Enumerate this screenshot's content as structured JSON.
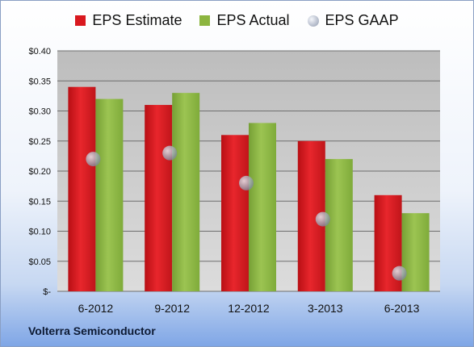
{
  "chart_data": {
    "type": "bar",
    "categories": [
      "6-2012",
      "9-2012",
      "12-2012",
      "3-2013",
      "6-2013"
    ],
    "series": [
      {
        "name": "EPS Estimate",
        "values": [
          0.34,
          0.31,
          0.26,
          0.25,
          0.16
        ],
        "color": "#d9191f",
        "kind": "bar"
      },
      {
        "name": "EPS Actual",
        "values": [
          0.32,
          0.33,
          0.28,
          0.22,
          0.13
        ],
        "color": "#8cb540",
        "kind": "bar"
      },
      {
        "name": "EPS GAAP",
        "values": [
          0.22,
          0.23,
          0.18,
          0.12,
          0.03
        ],
        "color": "#b4bccb",
        "kind": "marker"
      }
    ],
    "yticks": [
      "$-",
      "$0.05",
      "$0.10",
      "$0.15",
      "$0.20",
      "$0.25",
      "$0.30",
      "$0.35",
      "$0.40"
    ],
    "ylim": [
      0,
      0.4
    ],
    "grid": true,
    "legend_position": "top"
  },
  "footer": {
    "company": "Volterra Semiconductor"
  }
}
